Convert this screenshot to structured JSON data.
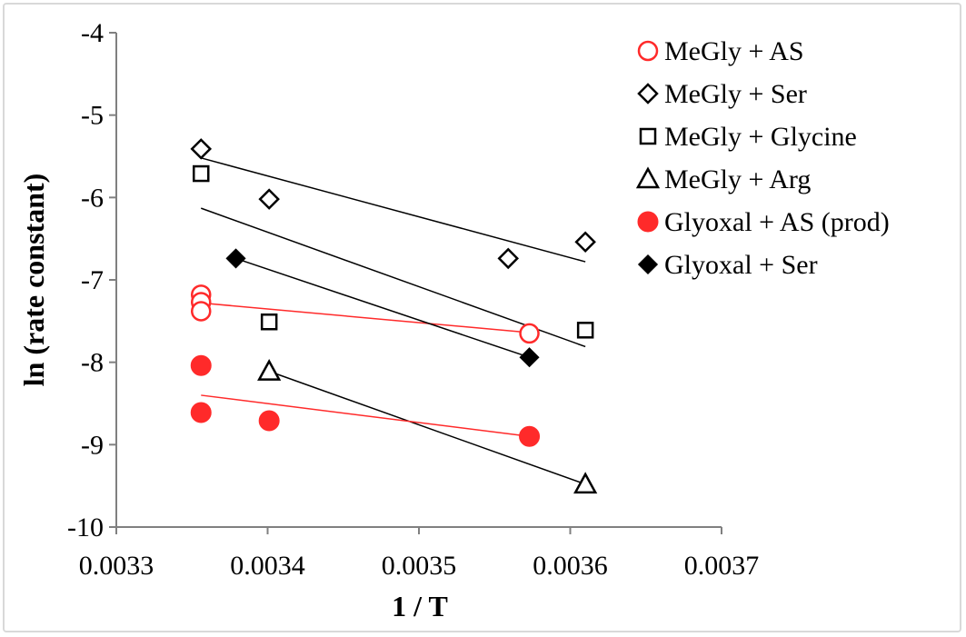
{
  "chart_data": {
    "type": "scatter",
    "xlabel": "1 / T",
    "ylabel": "ln (rate constant)",
    "xlim": [
      0.0033,
      0.0037
    ],
    "ylim": [
      -10,
      -4
    ],
    "x_ticks": [
      "0.0033",
      "0.0034",
      "0.0035",
      "0.0036",
      "0.0037"
    ],
    "y_ticks": [
      "-4",
      "-5",
      "-6",
      "-7",
      "-8",
      "-9",
      "-10"
    ],
    "legend_position": "top-right",
    "series": [
      {
        "name": "MeGly + AS",
        "marker": "open-circle",
        "color": "#ff2a2a",
        "points": [
          [
            0.003356,
            -7.18
          ],
          [
            0.003356,
            -7.27
          ],
          [
            0.003356,
            -7.38
          ],
          [
            0.003573,
            -7.65
          ]
        ],
        "trendline": [
          [
            0.003356,
            -7.28
          ],
          [
            0.003573,
            -7.64
          ]
        ]
      },
      {
        "name": "MeGly + Ser",
        "marker": "open-diamond",
        "color": "#000000",
        "points": [
          [
            0.003356,
            -5.41
          ],
          [
            0.003401,
            -6.02
          ],
          [
            0.003559,
            -6.74
          ],
          [
            0.00361,
            -6.54
          ]
        ],
        "trendline": [
          [
            0.003356,
            -5.52
          ],
          [
            0.00361,
            -6.78
          ]
        ]
      },
      {
        "name": "MeGly + Glycine",
        "marker": "open-square",
        "color": "#000000",
        "points": [
          [
            0.003356,
            -5.71
          ],
          [
            0.003401,
            -7.51
          ],
          [
            0.00361,
            -7.61
          ]
        ],
        "trendline": [
          [
            0.003356,
            -6.13
          ],
          [
            0.00361,
            -7.81
          ]
        ]
      },
      {
        "name": "MeGly + Arg",
        "marker": "open-triangle",
        "color": "#000000",
        "points": [
          [
            0.003401,
            -8.11
          ],
          [
            0.00361,
            -9.48
          ]
        ],
        "trendline": [
          [
            0.003401,
            -8.11
          ],
          [
            0.00361,
            -9.48
          ]
        ]
      },
      {
        "name": "Glyoxal + AS (prod)",
        "marker": "filled-circle",
        "color": "#ff2a2a",
        "points": [
          [
            0.003356,
            -8.04
          ],
          [
            0.003356,
            -8.61
          ],
          [
            0.003401,
            -8.71
          ],
          [
            0.003573,
            -8.9
          ]
        ],
        "trendline": [
          [
            0.003356,
            -8.4
          ],
          [
            0.003573,
            -8.9
          ]
        ]
      },
      {
        "name": "Glyoxal + Ser",
        "marker": "filled-diamond",
        "color": "#000000",
        "points": [
          [
            0.003379,
            -6.74
          ],
          [
            0.003573,
            -7.94
          ]
        ],
        "trendline": [
          [
            0.003379,
            -6.74
          ],
          [
            0.003573,
            -7.94
          ]
        ]
      }
    ]
  }
}
